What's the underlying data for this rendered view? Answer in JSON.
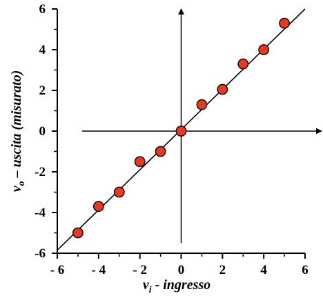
{
  "chart_data": {
    "type": "scatter",
    "xlabel": "v_i - ingresso",
    "ylabel": "v_o – uscita (misurato)",
    "xlabel_parts": {
      "var": "v",
      "sub": "i",
      "rest": " - ingresso"
    },
    "ylabel_parts": {
      "var": "v",
      "sub": "o",
      "rest": " – uscita (misurato)"
    },
    "xlim": [
      -6,
      6
    ],
    "ylim": [
      -6,
      6
    ],
    "x_ticks": [
      -6,
      -4,
      -2,
      0,
      2,
      4,
      6
    ],
    "y_ticks": [
      -6,
      -4,
      -2,
      0,
      2,
      4,
      6
    ],
    "x_tick_labels": [
      "- 6",
      "- 4",
      "- 2",
      "0",
      "2",
      "4",
      "6"
    ],
    "y_tick_labels": [
      "-6",
      "-4",
      "-2",
      "0",
      "2",
      "4",
      "6"
    ],
    "grid": false,
    "series": [
      {
        "type": "scatter",
        "marker_color": "#e8391e",
        "x": [
          -5,
          -4,
          -3,
          -2,
          -1,
          0,
          1,
          2,
          3,
          4,
          5
        ],
        "y": [
          -5.0,
          -3.7,
          -3.0,
          -1.5,
          -1.0,
          0.0,
          1.3,
          2.05,
          3.3,
          4.0,
          5.3
        ]
      },
      {
        "type": "line",
        "line_color": "#000000",
        "x": [
          -6,
          6
        ],
        "y": [
          -5.85,
          6.0
        ]
      }
    ],
    "crosshair_axes": {
      "x_range": [
        -4.8,
        6.8
      ],
      "y_range": [
        -5.5,
        6.0
      ]
    }
  }
}
